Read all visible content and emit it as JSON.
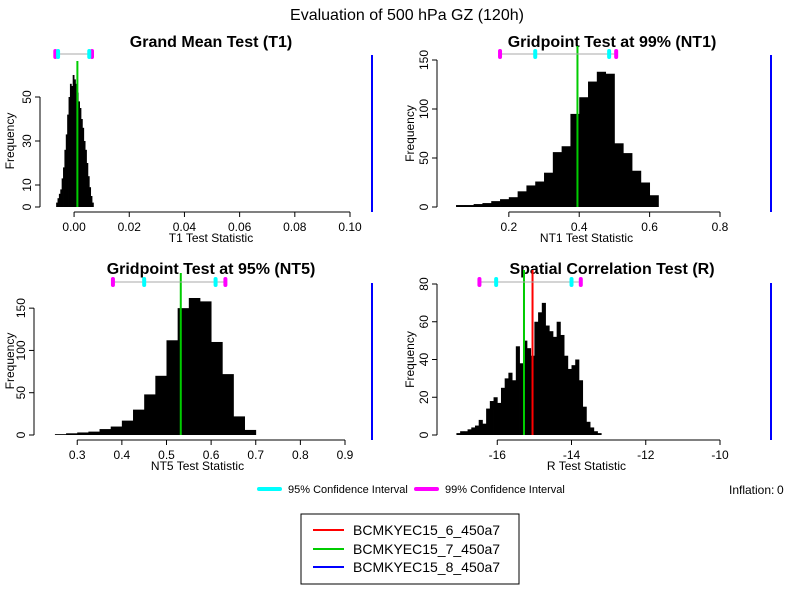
{
  "figure": {
    "title": "Evaluation of 500 hPa GZ (120h)",
    "inflation_label": "Inflation:",
    "inflation_value": "0",
    "ci_legend": [
      {
        "label": "95% Confidence Interval",
        "color": "#00ffff"
      },
      {
        "label": "99% Confidence Interval",
        "color": "#ff00ff"
      }
    ],
    "run_legend": [
      {
        "label": "BCMKYEC15_6_450a7",
        "color": "#ff0000"
      },
      {
        "label": "BCMKYEC15_7_450a7",
        "color": "#00cc00"
      },
      {
        "label": "BCMKYEC15_8_450a7",
        "color": "#0000ff"
      }
    ]
  },
  "chart_data": [
    {
      "type": "bar",
      "title": "Grand Mean Test (T1)",
      "xlabel": "T1 Test Statistic",
      "ylabel": "Frequency",
      "xlim": [
        -0.008,
        0.1
      ],
      "ylim": [
        0,
        60
      ],
      "xticks": [
        0.0,
        0.02,
        0.04,
        0.06,
        0.08,
        0.1
      ],
      "xtick_labels": [
        "0.00",
        "0.02",
        "0.04",
        "0.06",
        "0.08",
        "0.10"
      ],
      "yticks": [
        0,
        10,
        30,
        50
      ],
      "bin_width": 0.0005,
      "bins_x": [
        -0.0065,
        -0.006,
        -0.0055,
        -0.005,
        -0.0045,
        -0.004,
        -0.0035,
        -0.003,
        -0.0025,
        -0.002,
        -0.0015,
        -0.001,
        -0.0005,
        0.0,
        0.0005,
        0.001,
        0.0015,
        0.002,
        0.0025,
        0.003,
        0.0035,
        0.004,
        0.0045,
        0.005,
        0.0055,
        0.006,
        0.0065
      ],
      "bins_count": [
        2,
        4,
        6,
        8,
        13,
        18,
        26,
        33,
        42,
        50,
        56,
        55,
        60,
        58,
        56,
        52,
        48,
        45,
        40,
        36,
        30,
        26,
        20,
        14,
        9,
        5,
        2
      ],
      "ci95": [
        -0.0058,
        0.0055
      ],
      "ci99": [
        -0.0068,
        0.0065
      ],
      "lines": [
        {
          "series": "BCMKYEC15_7_450a7",
          "x": 0.0012,
          "color": "#00cc00"
        }
      ],
      "offscale": [
        {
          "series": "BCMKYEC15_8_450a7",
          "color": "#0000ff"
        }
      ]
    },
    {
      "type": "bar",
      "title": "Gridpoint Test at 99% (NT1)",
      "xlabel": "NT1 Test Statistic",
      "ylabel": "Frequency",
      "xlim": [
        0.03,
        0.8
      ],
      "ylim": [
        0,
        150
      ],
      "xticks": [
        0.2,
        0.4,
        0.6,
        0.8
      ],
      "xtick_labels": [
        "0.2",
        "0.4",
        "0.6",
        "0.8"
      ],
      "yticks": [
        0,
        50,
        100,
        150
      ],
      "bin_width": 0.025,
      "bins_x": [
        0.05,
        0.075,
        0.1,
        0.125,
        0.15,
        0.175,
        0.2,
        0.225,
        0.25,
        0.275,
        0.3,
        0.325,
        0.35,
        0.375,
        0.4,
        0.425,
        0.45,
        0.475,
        0.5,
        0.525,
        0.55,
        0.575,
        0.6,
        0.625
      ],
      "bins_count": [
        2,
        2,
        3,
        4,
        6,
        8,
        10,
        16,
        22,
        26,
        35,
        56,
        62,
        95,
        112,
        128,
        138,
        136,
        65,
        55,
        37,
        25,
        12,
        0
      ],
      "ci95": [
        0.275,
        0.485
      ],
      "ci99": [
        0.175,
        0.505
      ],
      "lines": [
        {
          "series": "BCMKYEC15_7_450a7",
          "x": 0.395,
          "color": "#00cc00"
        }
      ],
      "offscale": [
        {
          "series": "BCMKYEC15_8_450a7",
          "color": "#0000ff"
        }
      ]
    },
    {
      "type": "bar",
      "title": "Gridpoint Test at 95% (NT5)",
      "xlabel": "NT5 Test Statistic",
      "ylabel": "Frequency",
      "xlim": [
        0.23,
        0.9
      ],
      "ylim": [
        0,
        175
      ],
      "xticks": [
        0.3,
        0.4,
        0.5,
        0.6,
        0.7,
        0.8,
        0.9
      ],
      "xtick_labels": [
        "0.3",
        "0.4",
        "0.5",
        "0.6",
        "0.7",
        "0.8",
        "0.9"
      ],
      "yticks": [
        0,
        50,
        100,
        150
      ],
      "bin_width": 0.025,
      "bins_x": [
        0.25,
        0.275,
        0.3,
        0.325,
        0.35,
        0.375,
        0.4,
        0.425,
        0.45,
        0.475,
        0.5,
        0.525,
        0.55,
        0.575,
        0.6,
        0.625,
        0.65,
        0.675
      ],
      "bins_count": [
        1,
        2,
        3,
        4,
        7,
        10,
        17,
        30,
        48,
        70,
        112,
        150,
        162,
        158,
        110,
        72,
        22,
        6
      ],
      "ci95": [
        0.45,
        0.61
      ],
      "ci99": [
        0.38,
        0.632
      ],
      "lines": [
        {
          "series": "BCMKYEC15_7_450a7",
          "x": 0.532,
          "color": "#00cc00"
        }
      ],
      "offscale": [
        {
          "series": "BCMKYEC15_8_450a7",
          "color": "#0000ff"
        }
      ]
    },
    {
      "type": "bar",
      "title": "Spatial Correlation Test (R)",
      "xlabel": "R Test Statistic",
      "ylabel": "Frequency",
      "xlim": [
        -17.3,
        -10
      ],
      "ylim": [
        0,
        80
      ],
      "xticks": [
        -16,
        -14,
        -12,
        -10
      ],
      "xtick_labels": [
        "-16",
        "-14",
        "-12",
        "-10"
      ],
      "yticks": [
        0,
        20,
        40,
        60,
        80
      ],
      "bin_width": 0.1,
      "bins_x": [
        -17.1,
        -17.0,
        -16.9,
        -16.8,
        -16.7,
        -16.6,
        -16.5,
        -16.4,
        -16.3,
        -16.2,
        -16.1,
        -16.0,
        -15.9,
        -15.8,
        -15.7,
        -15.6,
        -15.5,
        -15.4,
        -15.3,
        -15.2,
        -15.1,
        -15.0,
        -14.9,
        -14.8,
        -14.7,
        -14.6,
        -14.5,
        -14.4,
        -14.3,
        -14.2,
        -14.1,
        -14.0,
        -13.9,
        -13.8,
        -13.7,
        -13.6,
        -13.5,
        -13.4,
        -13.3
      ],
      "bins_count": [
        1,
        2,
        2,
        3,
        4,
        5,
        8,
        6,
        14,
        18,
        20,
        17,
        25,
        30,
        33,
        29,
        47,
        38,
        50,
        46,
        42,
        60,
        65,
        70,
        58,
        55,
        52,
        60,
        53,
        42,
        35,
        37,
        40,
        29,
        15,
        7,
        4,
        2,
        1
      ],
      "ci95": [
        -16.03,
        -14.0
      ],
      "ci99": [
        -16.48,
        -13.75
      ],
      "lines": [
        {
          "series": "BCMKYEC15_7_450a7",
          "x": -15.28,
          "color": "#00cc00"
        },
        {
          "series": "BCMKYEC15_6_450a7",
          "x": -15.05,
          "color": "#ff0000"
        }
      ],
      "offscale": [
        {
          "series": "BCMKYEC15_8_450a7",
          "color": "#0000ff"
        }
      ]
    }
  ]
}
